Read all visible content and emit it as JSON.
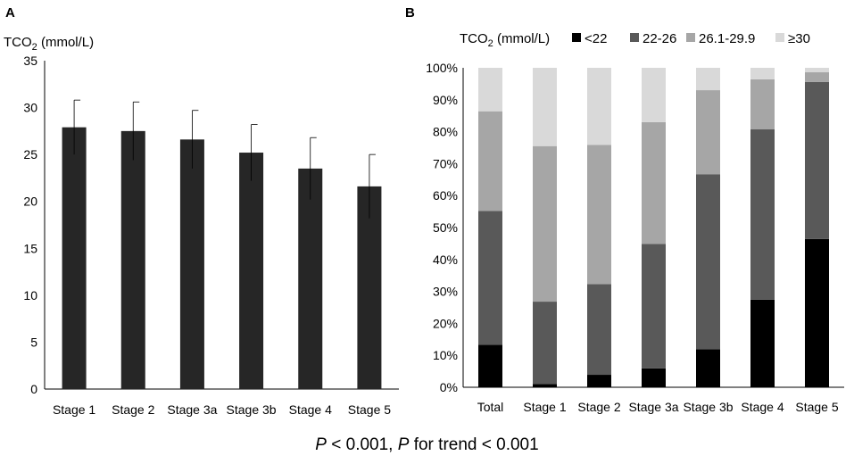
{
  "chart_data": [
    {
      "panel": "A",
      "type": "bar",
      "ylabel_main": "TCO",
      "ylabel_sub": "2",
      "ylabel_tail": " (mmol/L)",
      "categories": [
        "Stage 1",
        "Stage 2",
        "Stage 3a",
        "Stage 3b",
        "Stage 4",
        "Stage 5"
      ],
      "values": [
        27.9,
        27.5,
        26.6,
        25.2,
        23.5,
        21.6
      ],
      "errors": [
        2.9,
        3.1,
        3.1,
        3.0,
        3.3,
        3.4
      ],
      "ylim": [
        0,
        35
      ],
      "yticks": [
        0,
        5,
        10,
        15,
        20,
        25,
        30,
        35
      ],
      "bar_color": "#262626"
    },
    {
      "panel": "B",
      "type": "bar",
      "stacked": true,
      "legend_title_main": "TCO",
      "legend_title_sub": "2",
      "legend_title_tail": " (mmol/L)",
      "categories": [
        "Total",
        "Stage 1",
        "Stage 2",
        "Stage 3a",
        "Stage 3b",
        "Stage 4",
        "Stage 5"
      ],
      "series": [
        {
          "name": "<22",
          "color": "#000000",
          "values": [
            13.3,
            1.0,
            3.9,
            5.9,
            11.9,
            27.4,
            46.4
          ]
        },
        {
          "name": "22-26",
          "color": "#595959",
          "values": [
            41.9,
            25.8,
            28.4,
            39.0,
            54.8,
            53.4,
            49.2
          ]
        },
        {
          "name": "26.1-29.9",
          "color": "#a6a6a6",
          "values": [
            31.2,
            48.7,
            43.6,
            38.1,
            26.3,
            15.6,
            3.0
          ]
        },
        {
          "name": "≥30",
          "color": "#d9d9d9",
          "values": [
            13.6,
            24.5,
            24.1,
            17.0,
            7.0,
            3.6,
            1.4
          ]
        }
      ],
      "ylim": [
        0,
        100
      ],
      "yticks": [
        "0%",
        "10%",
        "20%",
        "30%",
        "40%",
        "50%",
        "60%",
        "70%",
        "80%",
        "90%",
        "100%"
      ]
    }
  ],
  "footer": {
    "p1": "P",
    "t1": " < 0.001, ",
    "p2": "P",
    "t2": " for trend < 0.001"
  }
}
